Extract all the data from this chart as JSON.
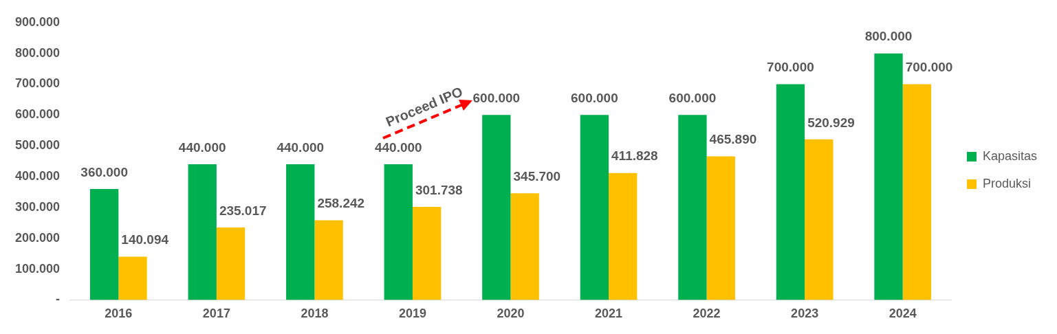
{
  "chart_data": {
    "type": "bar",
    "categories": [
      "2016",
      "2017",
      "2018",
      "2019",
      "2020",
      "2021",
      "2022",
      "2023",
      "2024"
    ],
    "series": [
      {
        "name": "Kapasitas",
        "color": "#00b050",
        "values": [
          360000,
          440000,
          440000,
          440000,
          600000,
          600000,
          600000,
          700000,
          800000
        ],
        "value_labels": [
          "360.000",
          "440.000",
          "440.000",
          "440.000",
          "600.000",
          "600.000",
          "600.000",
          "700.000",
          "800.000"
        ]
      },
      {
        "name": "Produksi",
        "color": "#ffc000",
        "values": [
          140094,
          235017,
          258242,
          301738,
          345700,
          411828,
          465890,
          520929,
          700000
        ],
        "value_labels": [
          "140.094",
          "235.017",
          "258.242",
          "301.738",
          "345.700",
          "411.828",
          "465.890",
          "520.929",
          "700.000"
        ]
      }
    ],
    "ylim": [
      0,
      900000
    ],
    "yticks": [
      {
        "value": 0,
        "label": "-"
      },
      {
        "value": 100000,
        "label": "100.000"
      },
      {
        "value": 200000,
        "label": "200.000"
      },
      {
        "value": 300000,
        "label": "300.000"
      },
      {
        "value": 400000,
        "label": "400.000"
      },
      {
        "value": 500000,
        "label": "500.000"
      },
      {
        "value": 600000,
        "label": "600.000"
      },
      {
        "value": 700000,
        "label": "700.000"
      },
      {
        "value": 800000,
        "label": "800.000"
      },
      {
        "value": 900000,
        "label": "900.000"
      }
    ],
    "grid": false,
    "legend": "right",
    "annotations": [
      "Proceed IPO"
    ]
  }
}
